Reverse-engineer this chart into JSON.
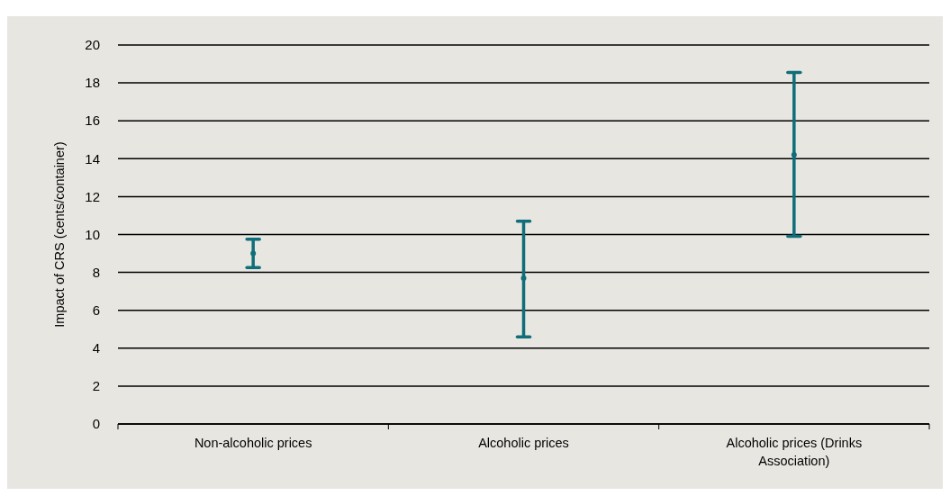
{
  "chart_data": {
    "type": "scatter",
    "ylabel": "Impact of CRS (cents/container)",
    "categories": [
      "Non-alcoholic prices",
      "Alcoholic prices",
      "Alcoholic prices (Drinks Association)"
    ],
    "values": [
      9.0,
      7.7,
      14.2
    ],
    "errors": [
      [
        8.25,
        9.75
      ],
      [
        4.6,
        10.7
      ],
      [
        9.9,
        18.55
      ]
    ],
    "color": "#0f6e7a",
    "marker": "circle",
    "ylim": [
      0,
      20
    ],
    "yticks": [
      0,
      2,
      4,
      6,
      8,
      10,
      12,
      14,
      16,
      18,
      20
    ],
    "grid": "y"
  }
}
